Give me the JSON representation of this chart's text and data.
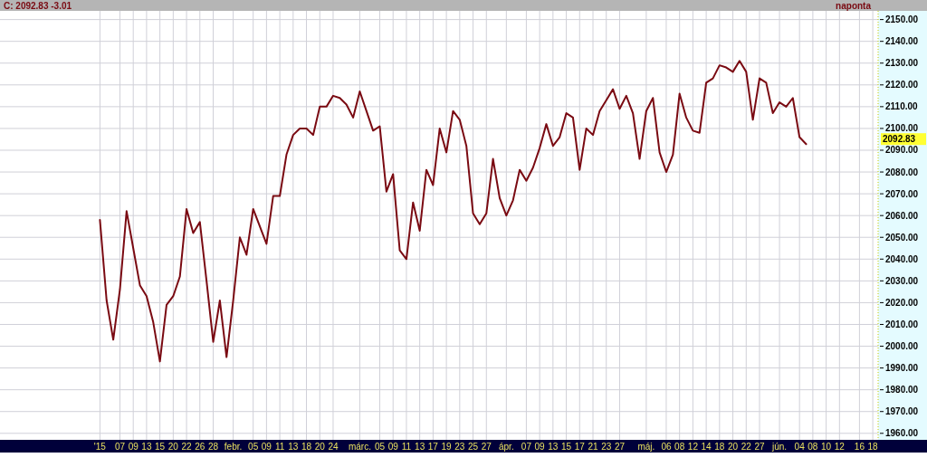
{
  "chart_data": {
    "type": "line",
    "title": "C: 2092.83 -3.01",
    "annotations": [
      "naponta",
      "2092.83"
    ],
    "categories": [
      "'15",
      null,
      null,
      "07",
      null,
      "09",
      null,
      "13",
      null,
      "15",
      null,
      "20",
      null,
      "22",
      null,
      "26",
      null,
      "28",
      null,
      null,
      "febr.",
      null,
      null,
      "05",
      null,
      "09",
      null,
      "11",
      null,
      "13",
      null,
      "18",
      null,
      "20",
      null,
      "24",
      null,
      null,
      null,
      "márc.",
      null,
      null,
      "05",
      null,
      "09",
      null,
      "11",
      null,
      "13",
      null,
      "17",
      null,
      "19",
      null,
      "23",
      null,
      "25",
      null,
      "27",
      null,
      null,
      "ápr.",
      null,
      null,
      "07",
      null,
      "09",
      null,
      "13",
      null,
      "15",
      null,
      "17",
      null,
      "21",
      null,
      "23",
      null,
      "27",
      null,
      null,
      null,
      "máj.",
      null,
      null,
      "06",
      null,
      "08",
      null,
      "12",
      null,
      "14",
      null,
      "18",
      null,
      "20",
      null,
      "22",
      null,
      "27",
      null,
      null,
      "jún.",
      null,
      null,
      "04",
      null,
      "08",
      null,
      "10",
      null,
      "12",
      null,
      null,
      "16",
      null,
      "18"
    ],
    "series": [
      {
        "color": "#7a0a12",
        "values": [
          2058,
          2021,
          2003,
          2026,
          2062,
          2045,
          2028,
          2023,
          2011,
          1993,
          2019,
          2023,
          2032,
          2063,
          2052,
          2057,
          2030,
          2002,
          2021,
          1995,
          2021,
          2050,
          2042,
          2063,
          2055,
          2047,
          2069,
          2069,
          2088,
          2097,
          2100,
          2100,
          2097,
          2110,
          2110,
          2115,
          2114,
          2111,
          2105,
          2117,
          2108,
          2099,
          2101,
          2071,
          2079,
          2044,
          2040,
          2066,
          2053,
          2081,
          2074,
          2100,
          2089,
          2108,
          2104,
          2092,
          2061,
          2056,
          2061,
          2086,
          2068,
          2060,
          2067,
          2081,
          2076,
          2082,
          2091,
          2102,
          2092,
          2096,
          2107,
          2105,
          2081,
          2100,
          2097,
          2108,
          2113,
          2118,
          2109,
          2115,
          2107,
          2086,
          2108,
          2114,
          2089,
          2080,
          2088,
          2116,
          2105,
          2099,
          2098,
          2121,
          2123,
          2129,
          2128,
          2126,
          2131,
          2126,
          2104,
          2123,
          2121,
          2107,
          2112,
          2110,
          2114,
          2096,
          2092.83,
          null,
          null,
          null,
          null,
          null,
          null,
          null,
          null,
          null,
          null
        ]
      }
    ],
    "ylim": [
      1957,
      2154
    ],
    "yticks": [
      {
        "value": 1960,
        "label": "1960.00"
      },
      {
        "value": 1970,
        "label": "1970.00"
      },
      {
        "value": 1980,
        "label": "1980.00"
      },
      {
        "value": 1990,
        "label": "1990.00"
      },
      {
        "value": 2000,
        "label": "2000.00"
      },
      {
        "value": 2010,
        "label": "2010.00"
      },
      {
        "value": 2020,
        "label": "2020.00"
      },
      {
        "value": 2030,
        "label": "2030.00"
      },
      {
        "value": 2040,
        "label": "2040.00"
      },
      {
        "value": 2050,
        "label": "2050.00"
      },
      {
        "value": 2060,
        "label": "2060.00"
      },
      {
        "value": 2070,
        "label": "2070.00"
      },
      {
        "value": 2080,
        "label": "2080.00"
      },
      {
        "value": 2090,
        "label": "2090.00"
      },
      {
        "value": 2100,
        "label": "2100.00"
      },
      {
        "value": 2110,
        "label": "2110.00"
      },
      {
        "value": 2120,
        "label": "2120.00"
      },
      {
        "value": 2130,
        "label": "2130.00"
      },
      {
        "value": 2140,
        "label": "2140.00"
      },
      {
        "value": 2150,
        "label": "2150.00"
      }
    ],
    "grid": true,
    "marker": "none",
    "line_style": "solid"
  }
}
